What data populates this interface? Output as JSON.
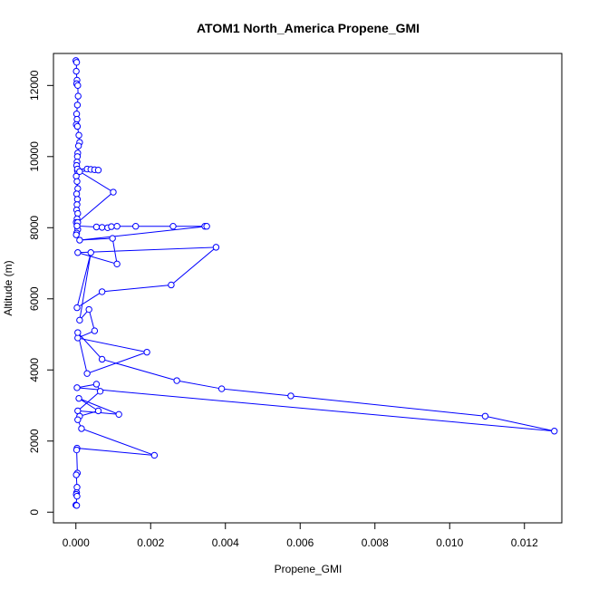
{
  "chart_data": {
    "type": "line",
    "title": "ATOM1 North_America Propene_GMI",
    "xlabel": "Propene_GMI",
    "ylabel": "Altitude (m)",
    "xlim": [
      -0.0006,
      0.013
    ],
    "ylim": [
      -300,
      12900
    ],
    "x_ticks": [
      0.0,
      0.002,
      0.004,
      0.006,
      0.008,
      0.01,
      0.012
    ],
    "x_tick_labels": [
      "0.000",
      "0.002",
      "0.004",
      "0.006",
      "0.008",
      "0.010",
      "0.012"
    ],
    "y_ticks": [
      0,
      2000,
      4000,
      6000,
      8000,
      10000,
      12000
    ],
    "y_tick_labels": [
      "0",
      "2000",
      "4000",
      "6000",
      "8000",
      "10000",
      "12000"
    ],
    "grid": false,
    "series": [
      {
        "color": "#0000ff",
        "marker": "open-circle",
        "x": [
          0.0,
          2e-05,
          1e-05,
          3e-05,
          2e-05,
          5e-05,
          6e-05,
          4e-05,
          2e-05,
          3e-05,
          1e-05,
          4e-05,
          8e-05,
          0.0001,
          7e-05,
          5e-05,
          4e-05,
          3e-05,
          2e-05,
          4e-05,
          1e-05,
          3e-05,
          5e-05,
          2e-05,
          4e-05,
          3e-05,
          2e-05,
          5e-05,
          3e-05,
          1e-05,
          3e-05,
          5e-05,
          2e-05,
          1e-05,
          4e-05,
          0.0003,
          0.0004,
          0.0005,
          0.0006,
          0.0001,
          0.001,
          5e-05,
          3e-05,
          0.00055,
          0.0007,
          0.00085,
          0.00095,
          0.0011,
          0.0016,
          0.0026,
          0.00345,
          0.0035,
          0.0001,
          0.00098,
          0.0011,
          5e-05,
          0.00375,
          0.00255,
          0.0007,
          3e-05,
          0.0004,
          0.0001,
          0.00035,
          0.0005,
          5e-05,
          0.0019,
          0.0003,
          5e-05,
          0.0007,
          0.0027,
          0.0039,
          0.00575,
          0.01095,
          0.0128,
          3e-05,
          0.00055,
          0.00065,
          5e-05,
          0.00115,
          8e-05,
          0.0006,
          0.0001,
          5e-05,
          0.00015,
          0.0021,
          3e-05,
          2e-05,
          4e-05,
          1e-05,
          3e-05,
          2e-05,
          1e-05,
          3e-05,
          0.0,
          2e-05
        ],
        "y": [
          12700,
          12650,
          12400,
          12150,
          12050,
          12000,
          11700,
          11450,
          11200,
          11050,
          10900,
          10850,
          10600,
          10400,
          10300,
          10100,
          10000,
          9850,
          9750,
          9600,
          9450,
          9300,
          9100,
          8950,
          8800,
          8650,
          8500,
          8400,
          8250,
          8150,
          8050,
          7950,
          7850,
          7800,
          9650,
          9650,
          9640,
          9630,
          9620,
          9580,
          9000,
          8150,
          8050,
          8020,
          8010,
          8000,
          8030,
          8040,
          8040,
          8040,
          8040,
          8040,
          7650,
          7700,
          6980,
          7300,
          7450,
          6390,
          6200,
          5750,
          7300,
          5400,
          5700,
          5100,
          4900,
          4500,
          3900,
          5050,
          4300,
          3700,
          3470,
          3270,
          2700,
          2280,
          3500,
          3600,
          3400,
          2850,
          2750,
          3200,
          2850,
          2700,
          2600,
          2350,
          1600,
          1800,
          1750,
          1100,
          1050,
          700,
          550,
          500,
          450,
          200,
          190
        ]
      }
    ]
  }
}
